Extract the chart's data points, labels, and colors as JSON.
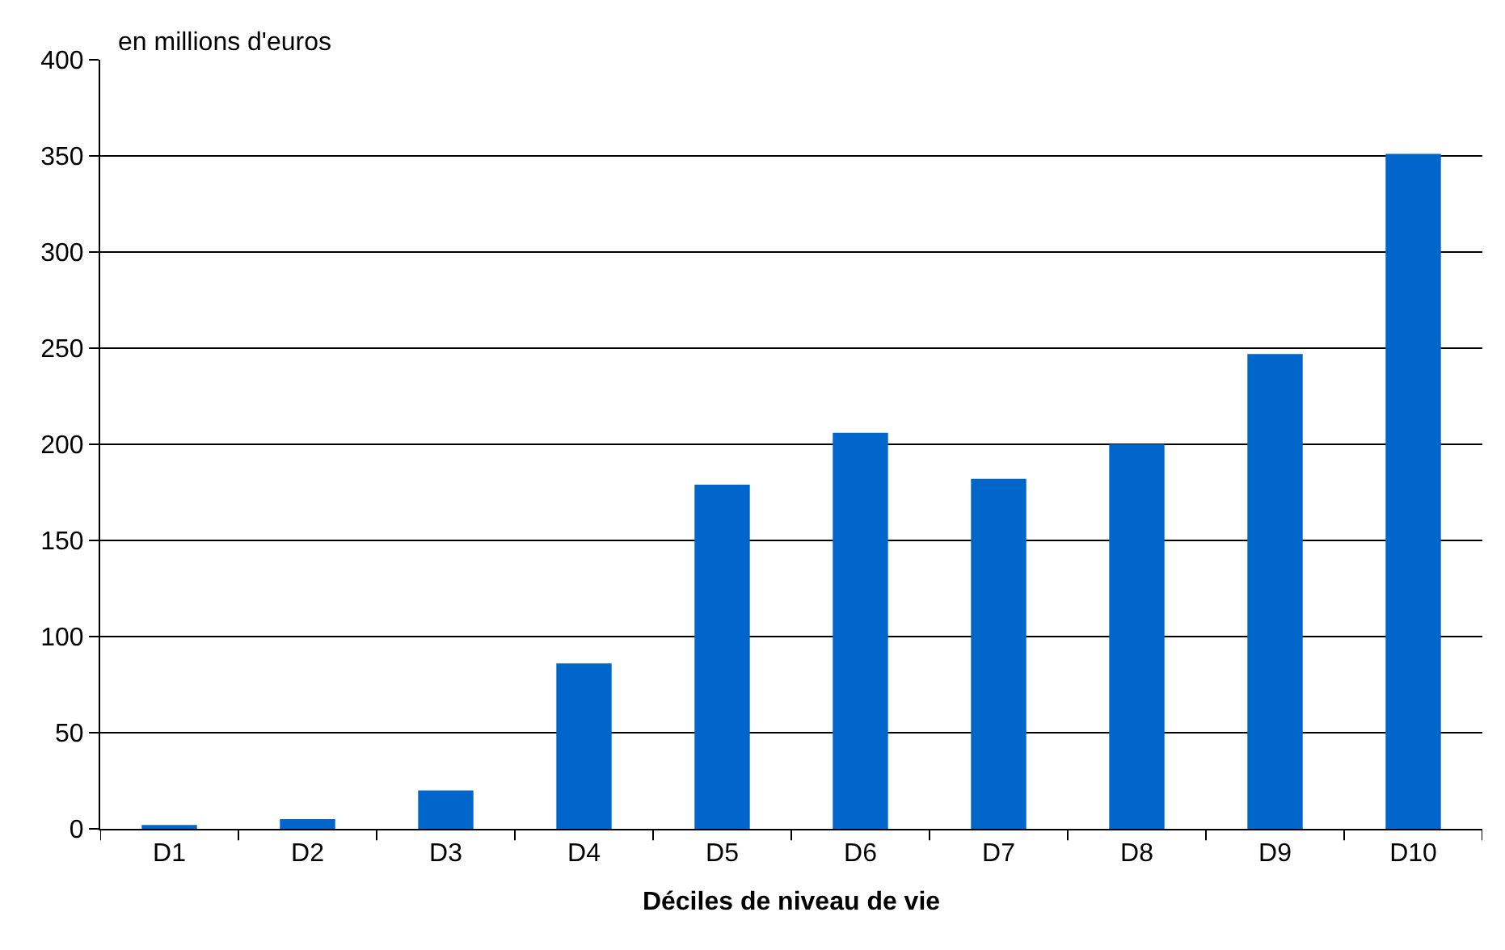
{
  "chart_data": {
    "type": "bar",
    "xlabel": "Déciles de niveau de vie",
    "annotations": [
      "en millions d'euros"
    ],
    "categories": [
      "D1",
      "D2",
      "D3",
      "D4",
      "D5",
      "D6",
      "D7",
      "D8",
      "D9",
      "D10"
    ],
    "values": [
      2,
      5,
      20,
      86,
      179,
      206,
      182,
      200,
      247,
      351
    ],
    "color": "#0066cc",
    "ylim": [
      0,
      400
    ],
    "yticks": [
      0,
      50,
      100,
      150,
      200,
      250,
      300,
      350,
      400
    ],
    "grid": "y"
  }
}
